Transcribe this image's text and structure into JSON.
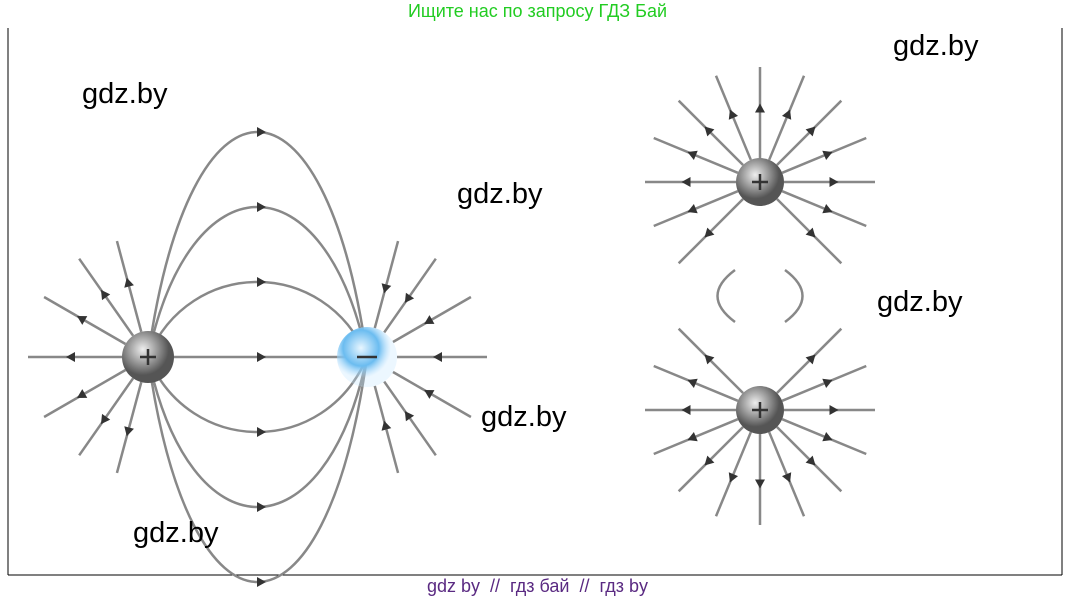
{
  "header": {
    "text": "Ищите нас по запросу ГДЗ Бай"
  },
  "watermarks": [
    "gdz.by",
    "gdz.by",
    "gdz.by",
    "gdz.by",
    "gdz.by",
    "gdz.by"
  ],
  "footer": {
    "text": "gdz by  //  гдз бай  //  гдз by"
  }
}
